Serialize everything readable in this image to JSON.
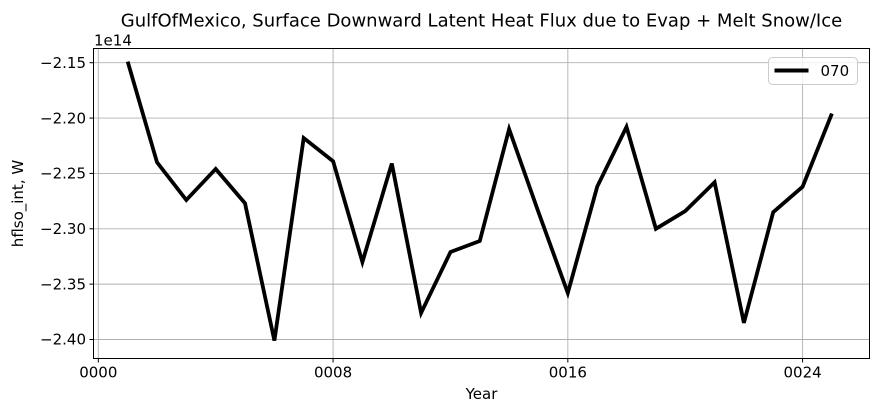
{
  "figure": {
    "background": "#ffffff",
    "grid_color": "#b0b0b0",
    "spine_color": "#000000",
    "line_color": "#000000"
  },
  "chart_data": {
    "type": "line",
    "title": "GulfOfMexico, Surface Downward Latent Heat Flux due to Evap + Melt Snow/Ice",
    "xlabel": "Year",
    "ylabel": "hflso_int, W",
    "offset_text": "1e14",
    "grid": true,
    "legend_position": "upper right",
    "xlim": [
      -0.164,
      26.28
    ],
    "ylim": [
      -2.41717,
      -2.13717
    ],
    "x_ticks": [
      {
        "value": 0,
        "label": "0000"
      },
      {
        "value": 8,
        "label": "0008"
      },
      {
        "value": 16,
        "label": "0016"
      },
      {
        "value": 24,
        "label": "0024"
      }
    ],
    "y_ticks": [
      {
        "value": -2.15,
        "label": "−2.15"
      },
      {
        "value": -2.2,
        "label": "−2.20"
      },
      {
        "value": -2.25,
        "label": "−2.25"
      },
      {
        "value": -2.3,
        "label": "−2.30"
      },
      {
        "value": -2.35,
        "label": "−2.35"
      },
      {
        "value": -2.4,
        "label": "−2.40"
      }
    ],
    "series": [
      {
        "name": "070",
        "color": "#000000",
        "linewidth": 3.8,
        "x": [
          1,
          2,
          3,
          4,
          5,
          6,
          7,
          8,
          9,
          10,
          11,
          12,
          13,
          14,
          15,
          16,
          17,
          18,
          19,
          20,
          21,
          22,
          23,
          24,
          25
        ],
        "values": [
          -2.149,
          -2.24,
          -2.274,
          -2.246,
          -2.277,
          -2.401,
          -2.218,
          -2.239,
          -2.33,
          -2.241,
          -2.376,
          -2.321,
          -2.311,
          -2.21,
          -2.285,
          -2.358,
          -2.262,
          -2.208,
          -2.3,
          -2.284,
          -2.258,
          -2.385,
          -2.285,
          -2.262,
          -2.196
        ]
      }
    ]
  },
  "legend": {
    "entries": [
      {
        "label": "070"
      }
    ]
  }
}
